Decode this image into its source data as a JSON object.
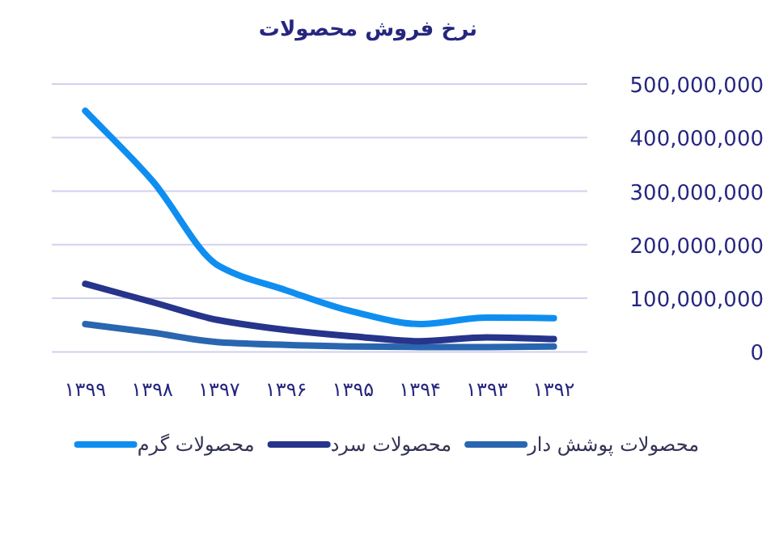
{
  "chart_data": {
    "type": "line",
    "title": "نرخ فروش محصولات",
    "categories": [
      "۱۳۹۹",
      "۱۳۹۸",
      "۱۳۹۷",
      "۱۳۹۶",
      "۱۳۹۵",
      "۱۳۹۴",
      "۱۳۹۳",
      "۱۳۹۲"
    ],
    "series": [
      {
        "name": "محصولات پوشش دار",
        "color": "#2a66b0",
        "values": [
          52000000,
          36000000,
          18000000,
          13000000,
          10000000,
          9000000,
          9000000,
          10000000
        ]
      },
      {
        "name": "محصولات سرد",
        "color": "#27348b",
        "values": [
          127000000,
          93000000,
          59000000,
          41000000,
          29000000,
          20000000,
          27000000,
          24000000
        ]
      },
      {
        "name": "محصولات گرم",
        "color": "#0f8ef0",
        "values": [
          450000000,
          320000000,
          160000000,
          115000000,
          75000000,
          52000000,
          64000000,
          63000000
        ]
      }
    ],
    "ylim": [
      0,
      500000000
    ],
    "yticks": [
      {
        "value": 0,
        "label": "0"
      },
      {
        "value": 100000000,
        "label": "100,000,000"
      },
      {
        "value": 200000000,
        "label": "200,000,000"
      },
      {
        "value": 300000000,
        "label": "300,000,000"
      },
      {
        "value": 400000000,
        "label": "400,000,000"
      },
      {
        "value": 500000000,
        "label": "500,000,000"
      }
    ],
    "grid": "y",
    "legend": "bottom",
    "marker": "none",
    "line_style": "solid"
  }
}
